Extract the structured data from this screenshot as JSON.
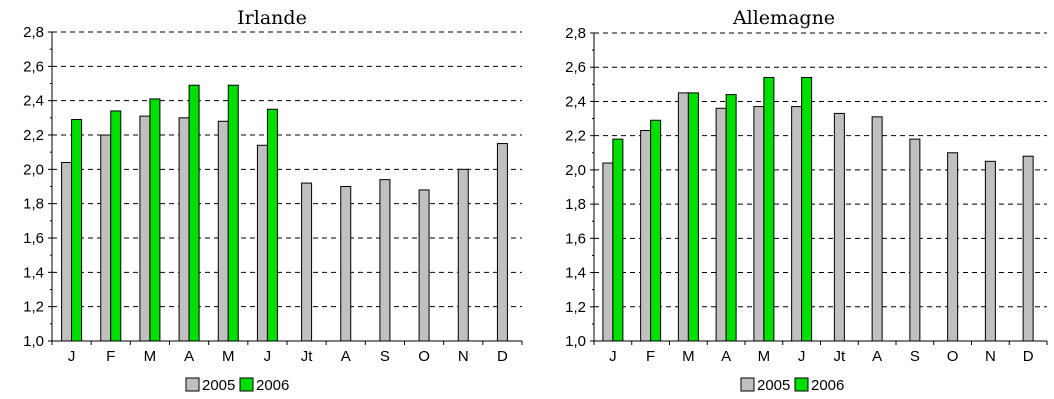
{
  "chart_data": [
    {
      "type": "bar",
      "title": "Irlande",
      "categories": [
        "J",
        "F",
        "M",
        "A",
        "M",
        "J",
        "Jt",
        "A",
        "S",
        "O",
        "N",
        "D"
      ],
      "series": [
        {
          "name": "2005",
          "color": "#c0c0c0",
          "values": [
            2.04,
            2.2,
            2.31,
            2.3,
            2.28,
            2.14,
            1.92,
            1.9,
            1.94,
            1.88,
            2.0,
            2.15
          ]
        },
        {
          "name": "2006",
          "color": "#00e000",
          "values": [
            2.29,
            2.34,
            2.41,
            2.49,
            2.49,
            2.35,
            null,
            null,
            null,
            null,
            null,
            null
          ]
        }
      ],
      "yticks": [
        "1,0",
        "1,2",
        "1,4",
        "1,6",
        "1,8",
        "2,0",
        "2,2",
        "2,4",
        "2,6",
        "2,8"
      ],
      "ylim": [
        1.0,
        2.8
      ],
      "grid": "dashed horizontal",
      "legend": "bottom"
    },
    {
      "type": "bar",
      "title": "Allemagne",
      "categories": [
        "J",
        "F",
        "M",
        "A",
        "M",
        "J",
        "Jt",
        "A",
        "S",
        "O",
        "N",
        "D"
      ],
      "series": [
        {
          "name": "2005",
          "color": "#c0c0c0",
          "values": [
            2.04,
            2.23,
            2.45,
            2.36,
            2.37,
            2.37,
            2.33,
            2.31,
            2.18,
            2.1,
            2.05,
            2.08
          ]
        },
        {
          "name": "2006",
          "color": "#00e000",
          "values": [
            2.18,
            2.29,
            2.45,
            2.44,
            2.54,
            2.54,
            null,
            null,
            null,
            null,
            null,
            null
          ]
        }
      ],
      "yticks": [
        "1,0",
        "1,2",
        "1,4",
        "1,6",
        "1,8",
        "2,0",
        "2,2",
        "2,4",
        "2,6",
        "2,8"
      ],
      "ylim": [
        1.0,
        2.8
      ],
      "grid": "dashed horizontal",
      "legend": "bottom"
    }
  ]
}
